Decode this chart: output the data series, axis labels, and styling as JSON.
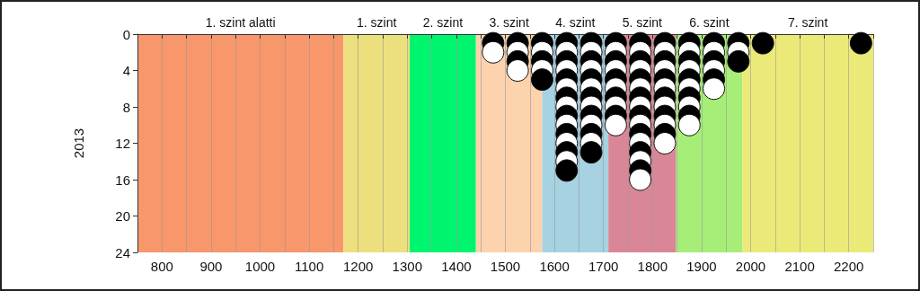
{
  "chart_data": {
    "type": "scatter",
    "ylabel": "2013",
    "xlim": [
      750,
      2250
    ],
    "ylim": [
      24,
      0
    ],
    "xticks": [
      {
        "value": 750,
        "label": null
      },
      800,
      {
        "value": 850,
        "label": null
      },
      900,
      {
        "value": 950,
        "label": null
      },
      1000,
      {
        "value": 1050,
        "label": null
      },
      1100,
      {
        "value": 1150,
        "label": null
      },
      1200,
      {
        "value": 1250,
        "label": null
      },
      1300,
      {
        "value": 1350,
        "label": null
      },
      1400,
      {
        "value": 1450,
        "label": null
      },
      1500,
      {
        "value": 1550,
        "label": null
      },
      1600,
      {
        "value": 1650,
        "label": null
      },
      1700,
      {
        "value": 1750,
        "label": null
      },
      1800,
      {
        "value": 1850,
        "label": null
      },
      1900,
      {
        "value": 1950,
        "label": null
      },
      2000,
      {
        "value": 2050,
        "label": null
      },
      2100,
      {
        "value": 2150,
        "label": null
      },
      2200,
      {
        "value": 2250,
        "label": null
      }
    ],
    "yticks": [
      0,
      4,
      8,
      12,
      16,
      20,
      24
    ],
    "grid": "x",
    "marker": "circle",
    "bands": [
      {
        "axis": "x",
        "from": 750,
        "to": 1170,
        "label": "1. szint alatti",
        "color": "#f8976c"
      },
      {
        "axis": "x",
        "from": 1170,
        "to": 1305,
        "label": "1. szint",
        "color": "#ece07e"
      },
      {
        "axis": "x",
        "from": 1305,
        "to": 1440,
        "label": "2. szint",
        "color": "#00f56e"
      },
      {
        "axis": "x",
        "from": 1440,
        "to": 1575,
        "label": "3. szint",
        "color": "#fcd3ac"
      },
      {
        "axis": "x",
        "from": 1575,
        "to": 1710,
        "label": "4. szint",
        "color": "#a6d2e2"
      },
      {
        "axis": "x",
        "from": 1710,
        "to": 1848,
        "label": "5. szint",
        "color": "#d98797"
      },
      {
        "axis": "x",
        "from": 1848,
        "to": 1983,
        "label": "6. szint",
        "color": "#a6ee78"
      },
      {
        "axis": "x",
        "from": 1983,
        "to": 2250,
        "label": "7. szint",
        "color": "#ebea78"
      }
    ],
    "series": [
      {
        "x": [
          1475,
          1525,
          1575,
          1625,
          1675,
          1725,
          1775,
          1825,
          1875,
          1925,
          1975,
          2025,
          2225,
          1475,
          1525,
          1575,
          1625,
          1675,
          1725,
          1775,
          1825,
          1875,
          1925,
          1975,
          1525,
          1575,
          1625,
          1675,
          1725,
          1775,
          1825,
          1875,
          1925,
          1975,
          1525,
          1575,
          1625,
          1675,
          1725,
          1775,
          1825,
          1875,
          1925,
          1575,
          1625,
          1675,
          1725,
          1775,
          1825,
          1875,
          1925,
          1625,
          1675,
          1725,
          1775,
          1825,
          1875,
          1925,
          1625,
          1675,
          1725,
          1775,
          1825,
          1875,
          1625,
          1675,
          1725,
          1775,
          1825,
          1875,
          1625,
          1675,
          1725,
          1775,
          1825,
          1875,
          1625,
          1675,
          1725,
          1775,
          1825,
          1875,
          1625,
          1675,
          1775,
          1825,
          1625,
          1675,
          1775,
          1825,
          1625,
          1675,
          1775,
          1625,
          1775,
          1625,
          1775,
          1775
        ],
        "values": [
          1,
          1,
          1,
          1,
          1,
          1,
          1,
          1,
          1,
          1,
          1,
          1,
          1,
          2,
          2,
          2,
          2,
          2,
          2,
          2,
          2,
          2,
          2,
          2,
          3,
          3,
          3,
          3,
          3,
          3,
          3,
          3,
          3,
          3,
          4,
          4,
          4,
          4,
          4,
          4,
          4,
          4,
          4,
          5,
          5,
          5,
          5,
          5,
          5,
          5,
          5,
          6,
          6,
          6,
          6,
          6,
          6,
          6,
          7,
          7,
          7,
          7,
          7,
          7,
          8,
          8,
          8,
          8,
          8,
          8,
          9,
          9,
          9,
          9,
          9,
          9,
          10,
          10,
          10,
          10,
          10,
          10,
          11,
          11,
          11,
          11,
          12,
          12,
          12,
          12,
          13,
          13,
          13,
          14,
          14,
          15,
          15,
          16
        ],
        "colors": [
          "#000000",
          "#000000",
          "#000000",
          "#000000",
          "#000000",
          "#000000",
          "#000000",
          "#000000",
          "#000000",
          "#000000",
          "#000000",
          "#000000",
          "#000000",
          "#ffffff",
          "#ffffff",
          "#ffffff",
          "#ffffff",
          "#ffffff",
          "#ffffff",
          "#ffffff",
          "#ffffff",
          "#ffffff",
          "#ffffff",
          "#ffffff",
          "#000000",
          "#000000",
          "#000000",
          "#000000",
          "#000000",
          "#000000",
          "#000000",
          "#000000",
          "#000000",
          "#000000",
          "#ffffff",
          "#ffffff",
          "#ffffff",
          "#ffffff",
          "#ffffff",
          "#ffffff",
          "#ffffff",
          "#ffffff",
          "#ffffff",
          "#000000",
          "#000000",
          "#000000",
          "#000000",
          "#000000",
          "#000000",
          "#000000",
          "#000000",
          "#ffffff",
          "#ffffff",
          "#ffffff",
          "#ffffff",
          "#ffffff",
          "#ffffff",
          "#ffffff",
          "#000000",
          "#000000",
          "#000000",
          "#000000",
          "#000000",
          "#000000",
          "#ffffff",
          "#ffffff",
          "#ffffff",
          "#ffffff",
          "#ffffff",
          "#ffffff",
          "#000000",
          "#000000",
          "#000000",
          "#000000",
          "#000000",
          "#000000",
          "#ffffff",
          "#ffffff",
          "#ffffff",
          "#ffffff",
          "#ffffff",
          "#ffffff",
          "#000000",
          "#000000",
          "#000000",
          "#000000",
          "#ffffff",
          "#ffffff",
          "#ffffff",
          "#ffffff",
          "#000000",
          "#000000",
          "#000000",
          "#ffffff",
          "#ffffff",
          "#000000",
          "#000000",
          "#ffffff"
        ]
      }
    ]
  }
}
